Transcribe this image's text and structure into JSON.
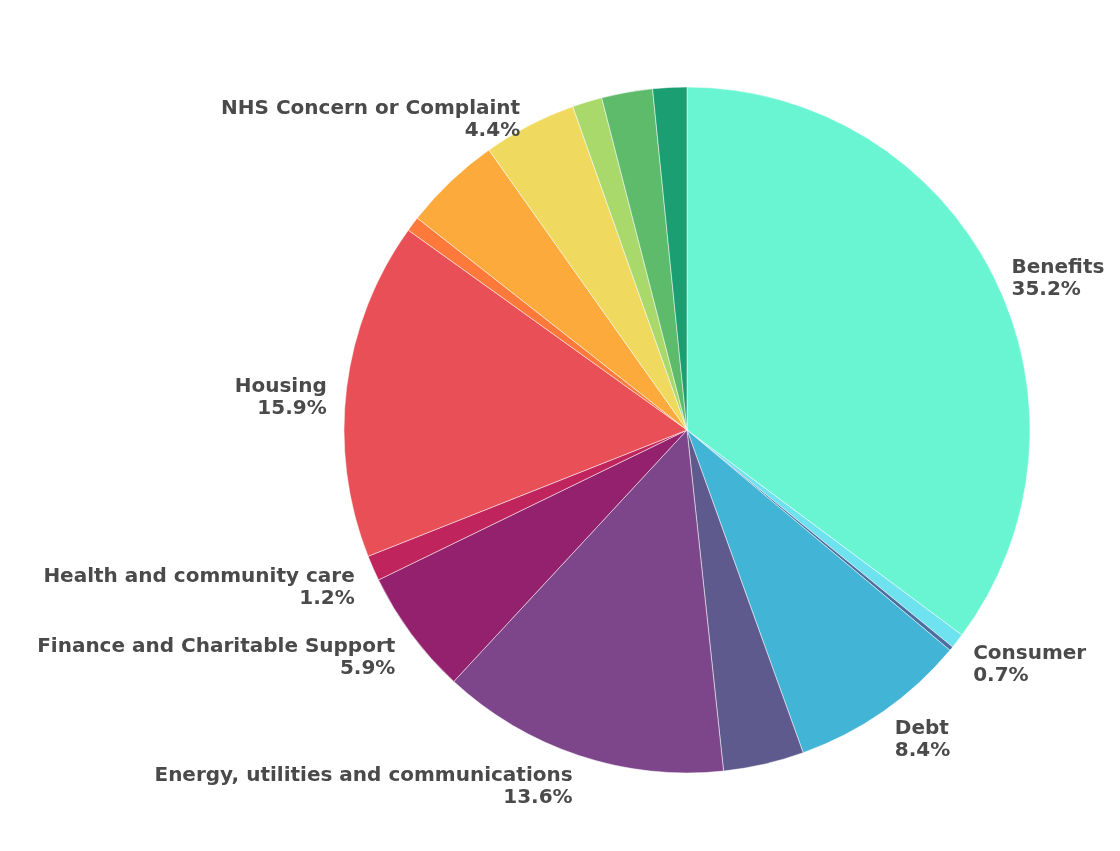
{
  "chart_data": {
    "type": "pie",
    "categories": [
      "Benefits",
      "Consumer",
      null,
      "Debt",
      null,
      "Energy, utilities and communications",
      "Finance and Charitable Support",
      "Health and community care",
      "Housing",
      null,
      null,
      "NHS Concern or Complaint",
      null,
      null,
      null
    ],
    "values": [
      35.2,
      0.7,
      0.2,
      8.4,
      3.8,
      13.6,
      5.9,
      1.2,
      15.9,
      0.7,
      4.6,
      4.4,
      1.4,
      2.4,
      1.6
    ],
    "value_labels": [
      "35.2%",
      "0.7%",
      null,
      "8.4%",
      null,
      "13.6%",
      "5.9%",
      "1.2%",
      "15.9%",
      null,
      null,
      "4.4%",
      null,
      null,
      null
    ],
    "colors": [
      "#6af5d2",
      "#6ee3ef",
      "#4a6fa0",
      "#42b4d6",
      "#5e5a8e",
      "#7d468b",
      "#93216e",
      "#c0245c",
      "#e94f57",
      "#ff7a3a",
      "#fdaa3c",
      "#efd95e",
      "#a8d96a",
      "#5dbb6b",
      "#1a9e72"
    ]
  }
}
